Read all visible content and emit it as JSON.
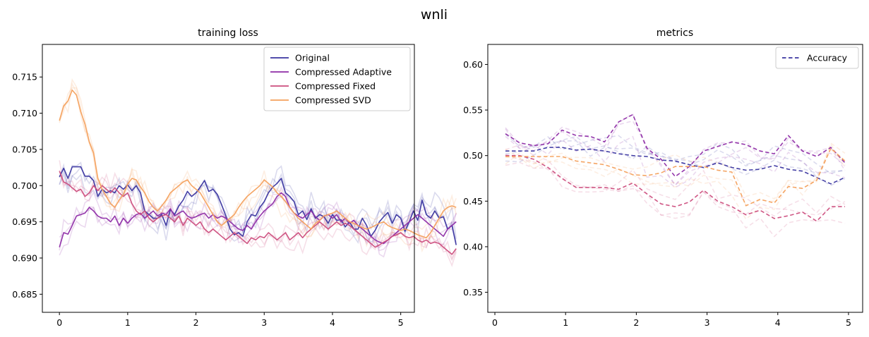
{
  "figure": {
    "title": "wnli"
  },
  "chart_data": [
    {
      "type": "line",
      "title": "training loss",
      "xlabel": "",
      "ylabel": "",
      "xlim": [
        -0.25,
        5.2
      ],
      "ylim": [
        0.6825,
        0.7195
      ],
      "xticks": [
        "0",
        "1",
        "2",
        "3",
        "4",
        "5"
      ],
      "yticks": [
        "0.685",
        "0.690",
        "0.695",
        "0.700",
        "0.705",
        "0.710",
        "0.715"
      ],
      "grid": false,
      "legend": "top-right",
      "x_start": 0.0,
      "x_step": 0.0625,
      "series": [
        {
          "name": "Original",
          "color": "#3a35a0",
          "values": [
            0.7012,
            0.7024,
            0.701,
            0.7026,
            0.7026,
            0.7026,
            0.7013,
            0.7013,
            0.7007,
            0.6985,
            0.6995,
            0.699,
            0.6993,
            0.699,
            0.7,
            0.6995,
            0.7001,
            0.6993,
            0.7,
            0.699,
            0.6965,
            0.696,
            0.6955,
            0.6955,
            0.696,
            0.6945,
            0.6967,
            0.696,
            0.6972,
            0.698,
            0.6992,
            0.6985,
            0.699,
            0.6998,
            0.7007,
            0.6992,
            0.6995,
            0.6988,
            0.6974,
            0.6958,
            0.694,
            0.6932,
            0.6935,
            0.693,
            0.695,
            0.696,
            0.6958,
            0.697,
            0.6978,
            0.699,
            0.6998,
            0.7003,
            0.701,
            0.699,
            0.6985,
            0.6978,
            0.696,
            0.6965,
            0.6953,
            0.6968,
            0.6955,
            0.696,
            0.6957,
            0.6948,
            0.696,
            0.6952,
            0.6953,
            0.6943,
            0.695,
            0.694,
            0.694,
            0.6955,
            0.6945,
            0.693,
            0.6938,
            0.695,
            0.6957,
            0.6963,
            0.6948,
            0.696,
            0.6955,
            0.6937,
            0.695,
            0.6965,
            0.6952,
            0.698,
            0.696,
            0.6955,
            0.6965,
            0.6955,
            0.6957,
            0.694,
            0.6945,
            0.6918
          ]
        },
        {
          "name": "Compressed Adaptive",
          "color": "#8e2ca6",
          "values": [
            0.6915,
            0.6935,
            0.6933,
            0.6945,
            0.6958,
            0.696,
            0.6962,
            0.697,
            0.6965,
            0.6958,
            0.6955,
            0.6955,
            0.695,
            0.6958,
            0.6945,
            0.6955,
            0.6948,
            0.6955,
            0.696,
            0.6962,
            0.6955,
            0.696,
            0.6965,
            0.6958,
            0.6962,
            0.696,
            0.6968,
            0.6958,
            0.6962,
            0.6965,
            0.6958,
            0.6955,
            0.6957,
            0.696,
            0.6962,
            0.6955,
            0.696,
            0.6955,
            0.6958,
            0.6955,
            0.695,
            0.6945,
            0.694,
            0.6938,
            0.6945,
            0.694,
            0.695,
            0.6958,
            0.6965,
            0.697,
            0.6975,
            0.6985,
            0.699,
            0.6985,
            0.697,
            0.6962,
            0.6958,
            0.6955,
            0.696,
            0.6965,
            0.6957,
            0.6952,
            0.6958,
            0.696,
            0.6955,
            0.696,
            0.695,
            0.6955,
            0.6948,
            0.6952,
            0.6945,
            0.694,
            0.6935,
            0.693,
            0.6925,
            0.6922,
            0.692,
            0.6925,
            0.693,
            0.6935,
            0.694,
            0.6945,
            0.695,
            0.6955,
            0.696,
            0.6955,
            0.695,
            0.6945,
            0.694,
            0.6935,
            0.693,
            0.694,
            0.6945,
            0.695
          ]
        },
        {
          "name": "Compressed Fixed",
          "color": "#cc4d7d",
          "values": [
            0.702,
            0.7005,
            0.7002,
            0.6997,
            0.6992,
            0.6995,
            0.6985,
            0.699,
            0.7,
            0.6993,
            0.7,
            0.6995,
            0.699,
            0.6997,
            0.699,
            0.6985,
            0.699,
            0.6975,
            0.6965,
            0.696,
            0.6965,
            0.6955,
            0.695,
            0.6955,
            0.6958,
            0.696,
            0.6955,
            0.695,
            0.6958,
            0.6945,
            0.6955,
            0.695,
            0.6945,
            0.695,
            0.694,
            0.6935,
            0.694,
            0.6935,
            0.693,
            0.6925,
            0.693,
            0.6935,
            0.693,
            0.6925,
            0.692,
            0.6928,
            0.6925,
            0.693,
            0.6928,
            0.6935,
            0.693,
            0.6925,
            0.693,
            0.6935,
            0.6925,
            0.693,
            0.6935,
            0.6928,
            0.6935,
            0.694,
            0.6945,
            0.695,
            0.6945,
            0.694,
            0.6945,
            0.695,
            0.6945,
            0.6948,
            0.6945,
            0.694,
            0.6935,
            0.693,
            0.6925,
            0.692,
            0.6915,
            0.6918,
            0.6922,
            0.6925,
            0.693,
            0.6932,
            0.6935,
            0.693,
            0.6928,
            0.693,
            0.6925,
            0.6922,
            0.6925,
            0.692,
            0.6922,
            0.692,
            0.6915,
            0.691,
            0.6905,
            0.6913
          ]
        },
        {
          "name": "Compressed SVD",
          "color": "#f4a05c",
          "values": [
            0.709,
            0.711,
            0.7117,
            0.7132,
            0.7125,
            0.7102,
            0.7085,
            0.706,
            0.7045,
            0.701,
            0.6995,
            0.6985,
            0.6975,
            0.697,
            0.698,
            0.6988,
            0.7002,
            0.701,
            0.7008,
            0.6998,
            0.699,
            0.6978,
            0.697,
            0.6965,
            0.6972,
            0.698,
            0.699,
            0.6995,
            0.7,
            0.7005,
            0.7008,
            0.7,
            0.6995,
            0.699,
            0.698,
            0.697,
            0.696,
            0.695,
            0.6945,
            0.695,
            0.6955,
            0.696,
            0.697,
            0.6978,
            0.6985,
            0.699,
            0.6995,
            0.7,
            0.7008,
            0.7003,
            0.6998,
            0.699,
            0.6985,
            0.6978,
            0.697,
            0.6962,
            0.6955,
            0.695,
            0.6945,
            0.694,
            0.6948,
            0.6952,
            0.6958,
            0.696,
            0.6962,
            0.6965,
            0.696,
            0.6955,
            0.695,
            0.6948,
            0.6945,
            0.6942,
            0.694,
            0.6942,
            0.6945,
            0.6948,
            0.695,
            0.6945,
            0.6942,
            0.694,
            0.6938,
            0.694,
            0.6938,
            0.6935,
            0.6932,
            0.693,
            0.6928,
            0.6935,
            0.6945,
            0.6955,
            0.6965,
            0.697,
            0.6972,
            0.697
          ]
        }
      ]
    },
    {
      "type": "line",
      "title": "metrics",
      "xlabel": "",
      "ylabel": "",
      "xlim": [
        -0.1,
        5.2
      ],
      "ylim": [
        0.328,
        0.622
      ],
      "xticks": [
        "0",
        "1",
        "2",
        "3",
        "4",
        "5"
      ],
      "yticks": [
        "0.35",
        "0.40",
        "0.45",
        "0.50",
        "0.55",
        "0.60"
      ],
      "grid": false,
      "line_style": "dashed",
      "legend": "top-right",
      "legend_entries": [
        "Accuracy"
      ],
      "legend_color": "#3a35a0",
      "x": [
        0.15,
        0.35,
        0.55,
        0.75,
        0.95,
        1.15,
        1.35,
        1.55,
        1.75,
        1.95,
        2.15,
        2.35,
        2.55,
        2.75,
        2.95,
        3.15,
        3.35,
        3.55,
        3.75,
        3.95,
        4.15,
        4.35,
        4.55,
        4.75,
        4.95
      ],
      "series": [
        {
          "name": "Original",
          "color": "#3a35a0",
          "values": [
            0.505,
            0.505,
            0.505,
            0.509,
            0.509,
            0.506,
            0.507,
            0.505,
            0.502,
            0.5,
            0.499,
            0.495,
            0.494,
            0.49,
            0.487,
            0.492,
            0.487,
            0.484,
            0.485,
            0.489,
            0.485,
            0.483,
            0.476,
            0.469,
            0.476
          ]
        },
        {
          "name": "Compressed Adaptive",
          "color": "#8e2ca6",
          "values": [
            0.524,
            0.514,
            0.511,
            0.513,
            0.528,
            0.522,
            0.521,
            0.515,
            0.537,
            0.545,
            0.508,
            0.496,
            0.477,
            0.488,
            0.505,
            0.51,
            0.515,
            0.512,
            0.505,
            0.502,
            0.522,
            0.505,
            0.499,
            0.509,
            0.492
          ]
        },
        {
          "name": "Compressed Fixed",
          "color": "#cc4d7d",
          "values": [
            0.5,
            0.5,
            0.496,
            0.487,
            0.475,
            0.465,
            0.465,
            0.465,
            0.463,
            0.47,
            0.458,
            0.447,
            0.444,
            0.449,
            0.462,
            0.45,
            0.444,
            0.435,
            0.44,
            0.431,
            0.434,
            0.438,
            0.428,
            0.444,
            0.444
          ]
        },
        {
          "name": "Compressed SVD",
          "color": "#f4a05c",
          "values": [
            0.499,
            0.499,
            0.499,
            0.499,
            0.499,
            0.494,
            0.492,
            0.49,
            0.485,
            0.479,
            0.478,
            0.481,
            0.488,
            0.488,
            0.488,
            0.484,
            0.482,
            0.445,
            0.452,
            0.448,
            0.466,
            0.464,
            0.473,
            0.508,
            0.494
          ]
        }
      ]
    }
  ]
}
